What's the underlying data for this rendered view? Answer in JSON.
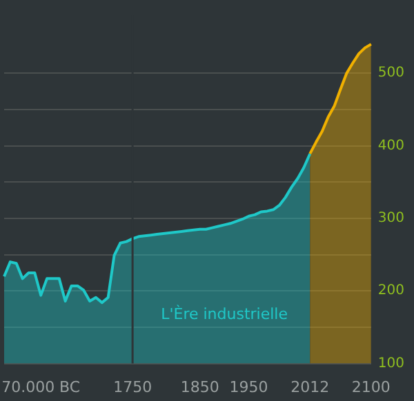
{
  "chart_data": {
    "type": "area",
    "categories": [
      null,
      null,
      null,
      null,
      null,
      null,
      "70.000 BC",
      null,
      null,
      null,
      null,
      null,
      null,
      null,
      null,
      null,
      null,
      null,
      null,
      null,
      null,
      "1750",
      null,
      null,
      null,
      null,
      null,
      null,
      null,
      null,
      null,
      null,
      "1850",
      null,
      null,
      null,
      null,
      null,
      null,
      null,
      "1950",
      null,
      null,
      null,
      null,
      null,
      null,
      null,
      null,
      null,
      "2012",
      null,
      null,
      null,
      null,
      null,
      null,
      null,
      null,
      null,
      "2100"
    ],
    "series": [
      {
        "color": "#1fc8c8",
        "values": [
          220,
          240,
          238,
          217,
          225,
          225,
          194,
          217,
          217,
          217,
          186,
          207,
          207,
          201,
          186,
          191,
          184,
          191,
          249,
          266,
          268,
          272,
          275,
          276,
          277,
          278,
          279,
          280,
          281,
          282,
          283,
          284,
          285,
          285,
          287,
          289,
          291,
          293,
          296,
          299,
          303,
          305,
          309,
          310,
          312,
          318,
          329,
          343,
          355,
          370,
          389,
          null,
          null,
          null,
          null,
          null,
          null,
          null,
          null,
          null,
          null
        ]
      },
      {
        "color": "#f0b000",
        "values": [
          null,
          null,
          null,
          null,
          null,
          null,
          null,
          null,
          null,
          null,
          null,
          null,
          null,
          null,
          null,
          null,
          null,
          null,
          null,
          null,
          null,
          null,
          null,
          null,
          null,
          null,
          null,
          null,
          null,
          null,
          null,
          null,
          null,
          null,
          null,
          null,
          null,
          null,
          null,
          null,
          null,
          null,
          null,
          null,
          null,
          null,
          null,
          null,
          null,
          null,
          389,
          405,
          420,
          440,
          455,
          478,
          500,
          514,
          527,
          535,
          540
        ]
      }
    ],
    "ylim": [
      100,
      580
    ],
    "yticks": [
      100,
      {
        "value": 150,
        "label": null
      },
      200,
      {
        "value": 250,
        "label": null
      },
      300,
      {
        "value": 350,
        "label": null
      },
      400,
      {
        "value": 450,
        "label": null
      },
      500
    ],
    "grid": "y",
    "legend": false,
    "marker": "none",
    "ref_lines": [
      {
        "axis": "x",
        "value": "1750",
        "color": "#2e3538"
      }
    ],
    "annotations": [
      "L'Ère industrielle"
    ]
  }
}
